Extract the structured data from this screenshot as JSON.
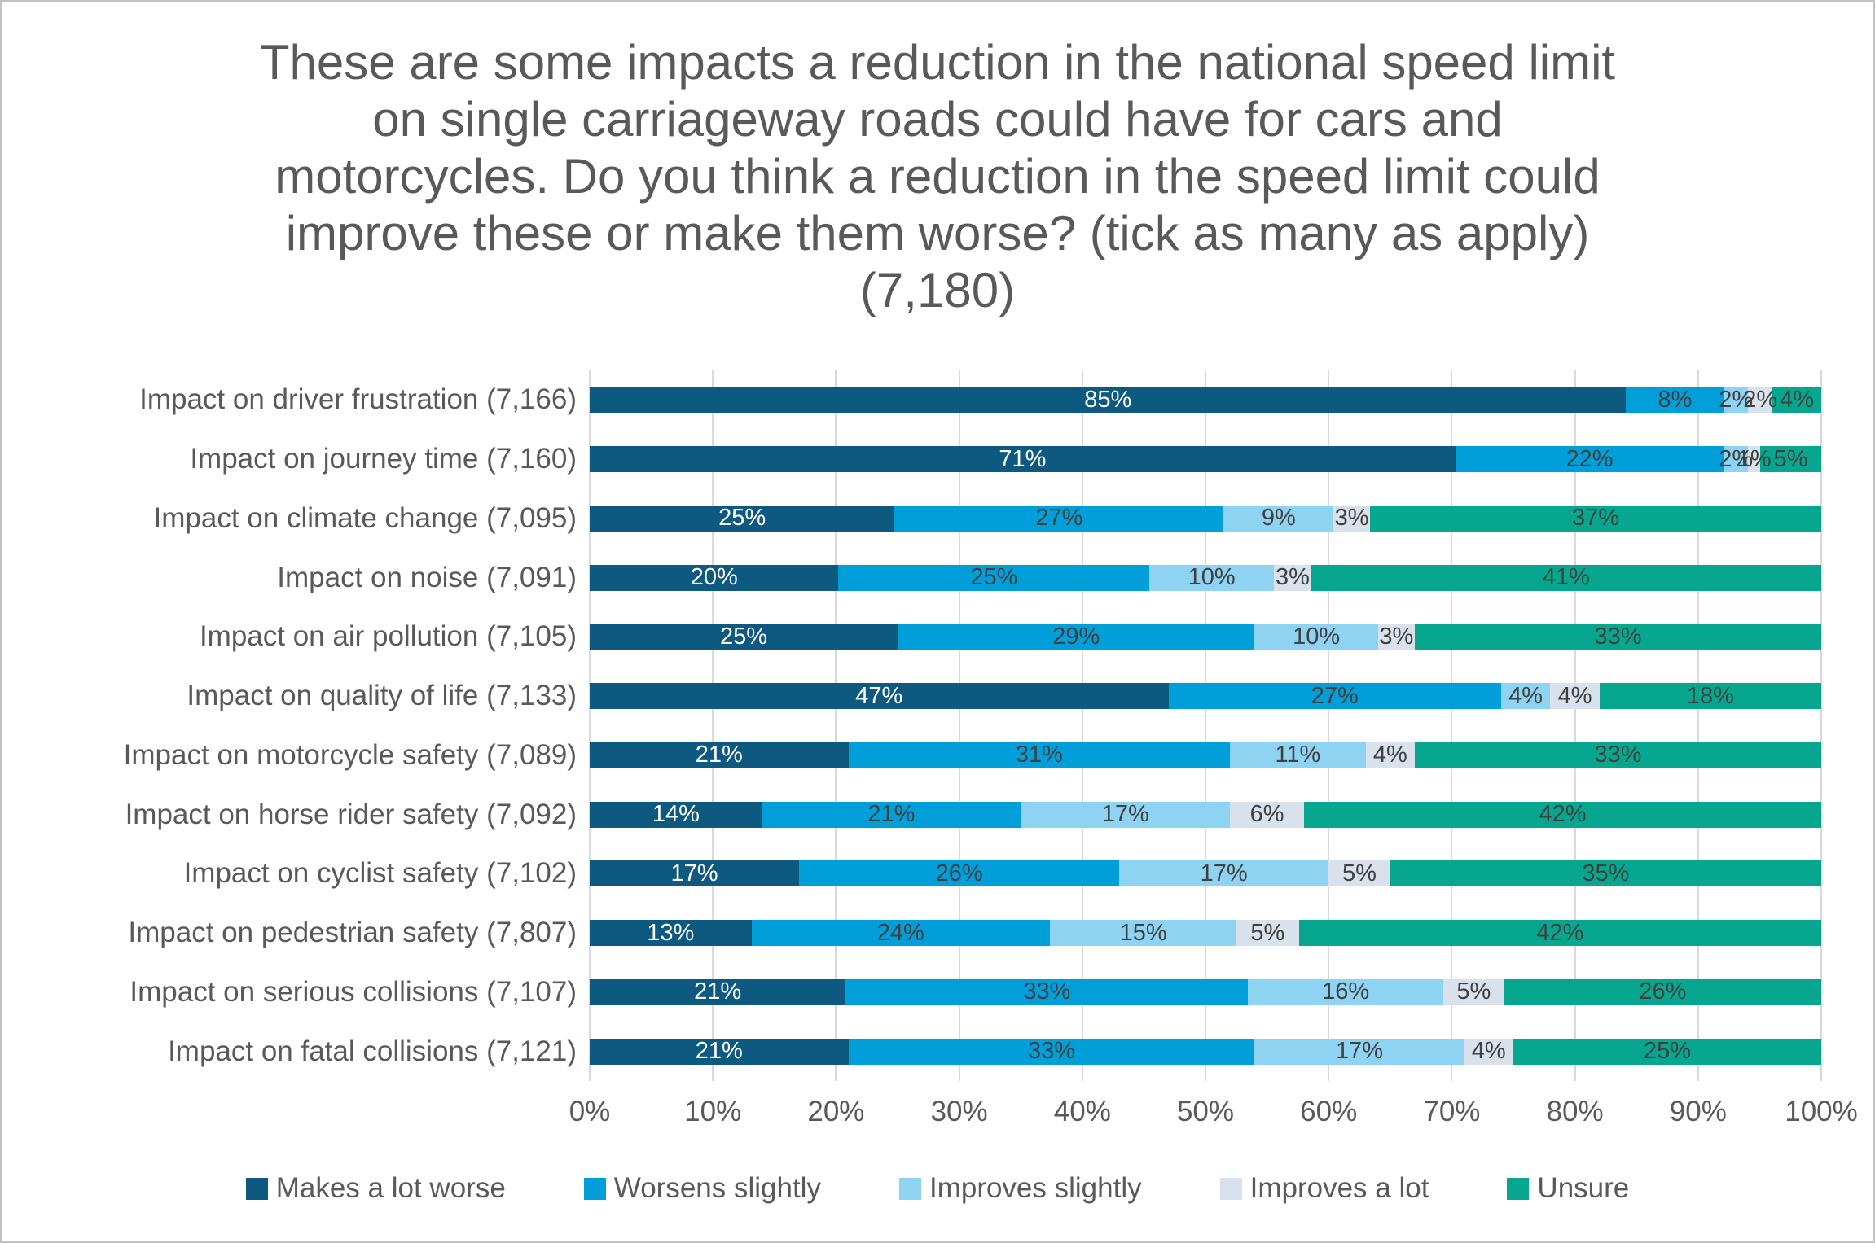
{
  "chart_data": {
    "type": "bar",
    "orientation": "horizontal",
    "stacked": "100-percent",
    "title": "These are some impacts a reduction in the national speed limit on single carriageway roads could have for cars and motorcycles.  Do you think a reduction in the speed limit could improve these or make them worse? (tick as many as apply) (7,180)",
    "categories": [
      "Impact on driver frustration (7,166)",
      "Impact on journey time (7,160)",
      "Impact on climate change (7,095)",
      "Impact on noise (7,091)",
      "Impact on air pollution (7,105)",
      "Impact on quality of life (7,133)",
      "Impact on motorcycle safety (7,089)",
      "Impact on horse rider safety (7,092)",
      "Impact on cyclist safety (7,102)",
      "Impact on pedestrian safety (7,807)",
      "Impact on serious collisions (7,107)",
      "Impact on fatal collisions (7,121)"
    ],
    "series": [
      {
        "name": "Makes a lot worse",
        "color": "#0d5980",
        "label_color": "#ffffff",
        "values": [
          85,
          71,
          25,
          20,
          25,
          47,
          21,
          14,
          17,
          13,
          21,
          21
        ]
      },
      {
        "name": "Worsens slightly",
        "color": "#009fda",
        "label_color": "#404040",
        "values": [
          8,
          22,
          27,
          25,
          29,
          27,
          31,
          21,
          26,
          24,
          33,
          33
        ]
      },
      {
        "name": "Improves slightly",
        "color": "#8fd3f3",
        "label_color": "#404040",
        "values": [
          2,
          2,
          9,
          10,
          10,
          4,
          11,
          17,
          17,
          15,
          16,
          17
        ]
      },
      {
        "name": "Improves a lot",
        "color": "#d9e1ec",
        "label_color": "#404040",
        "values": [
          2,
          1,
          3,
          3,
          3,
          4,
          4,
          6,
          5,
          5,
          5,
          4
        ]
      },
      {
        "name": "Unsure",
        "color": "#07a78f",
        "label_color": "#404040",
        "values": [
          4,
          5,
          37,
          41,
          33,
          18,
          33,
          42,
          35,
          42,
          26,
          25
        ]
      }
    ],
    "value_suffix": "%",
    "x_axis": {
      "min": 0,
      "max": 100,
      "ticks": [
        "0%",
        "10%",
        "20%",
        "30%",
        "40%",
        "50%",
        "60%",
        "70%",
        "80%",
        "90%",
        "100%"
      ]
    },
    "grid": true,
    "grid_color": "#d9d9d9",
    "legend_position": "bottom"
  }
}
